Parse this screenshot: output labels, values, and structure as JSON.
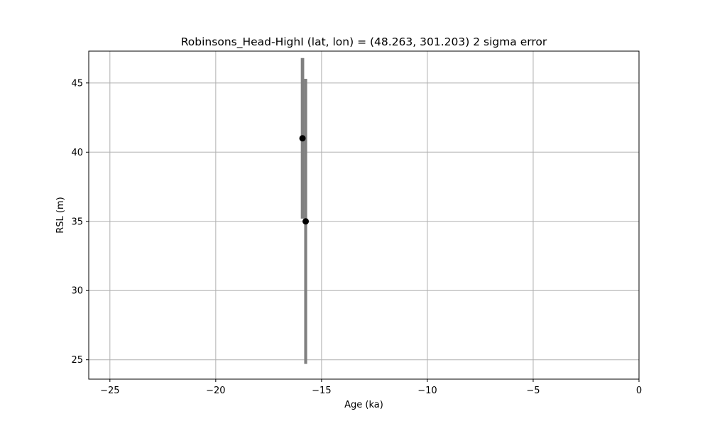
{
  "chart_data": {
    "type": "scatter",
    "title": "Robinsons_Head-HighI (lat, lon) = (48.263, 301.203)  2 sigma error",
    "xlabel": "Age (ka)",
    "ylabel": "RSL (m)",
    "xlim": [
      -26,
      0
    ],
    "ylim": [
      23.6,
      47.3
    ],
    "xticks": [
      -25,
      -20,
      -15,
      -10,
      -5,
      0
    ],
    "xtick_labels": [
      "−25",
      "−20",
      "−15",
      "−10",
      "−5",
      "0"
    ],
    "yticks": [
      25,
      30,
      35,
      40,
      45
    ],
    "ytick_labels": [
      "25",
      "30",
      "35",
      "40",
      "45"
    ],
    "grid": true,
    "marker_color": "#000000",
    "error_color": "#808080",
    "points": [
      {
        "x": -15.9,
        "y": 41.0,
        "y_low": 35.2,
        "y_high": 46.8,
        "x_low": -15.98,
        "x_high": -15.82
      },
      {
        "x": -15.75,
        "y": 35.0,
        "y_low": 24.7,
        "y_high": 45.3,
        "x_low": -15.82,
        "x_high": -15.68
      }
    ]
  }
}
